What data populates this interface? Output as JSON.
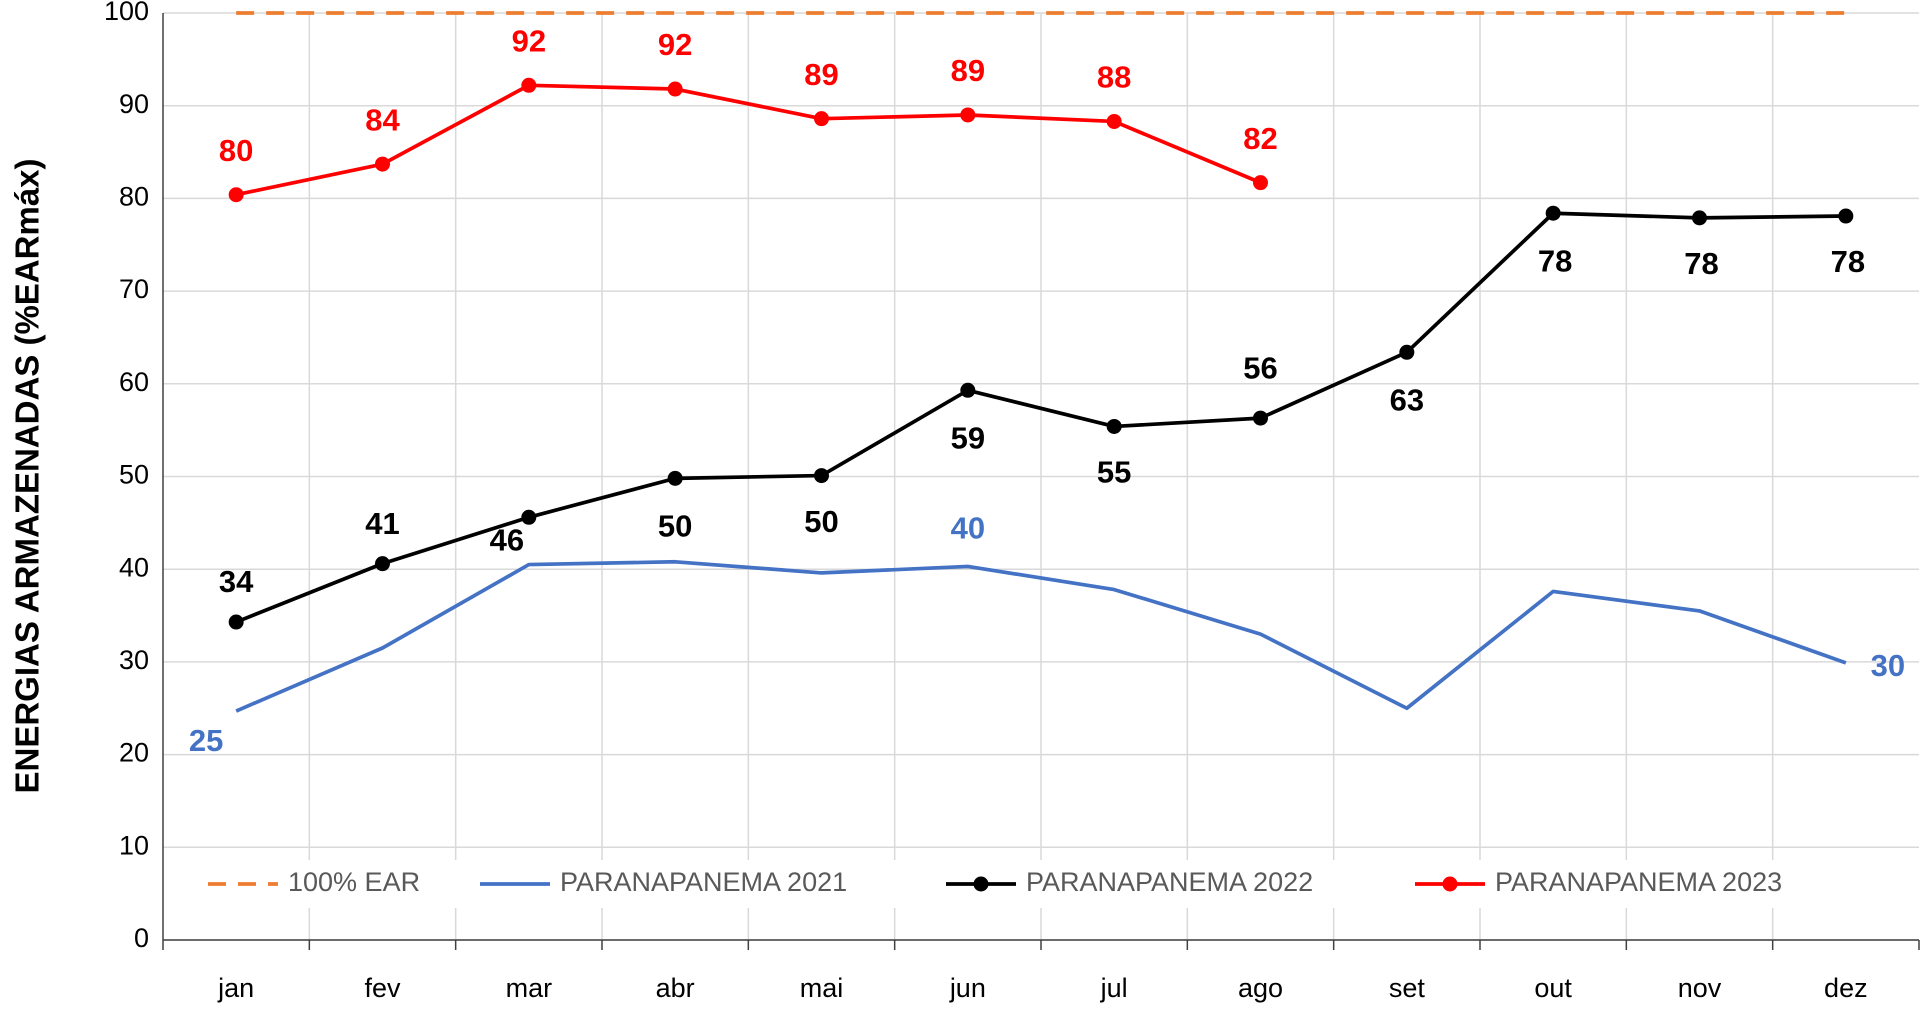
{
  "chart_data": {
    "type": "line",
    "y_label": "ENERGIAS ARMAZENADAS (%EARmáx)",
    "categories": [
      "jan",
      "fev",
      "mar",
      "abr",
      "mai",
      "jun",
      "jul",
      "ago",
      "set",
      "out",
      "nov",
      "dez"
    ],
    "ylim": [
      0,
      100
    ],
    "yticks": [
      0,
      10,
      20,
      30,
      40,
      50,
      60,
      70,
      80,
      90,
      100
    ],
    "grid": true,
    "legend": "bottom",
    "series": [
      {
        "name": "100% EAR",
        "color": "#ed7d31",
        "dashed": true,
        "marker": false,
        "values": [
          100,
          100,
          100,
          100,
          100,
          100,
          100,
          100,
          100,
          100,
          100,
          100
        ]
      },
      {
        "name": "PARANAPANEMA 2021",
        "color": "#4472c4",
        "dashed": false,
        "marker": false,
        "values": [
          24.7,
          31.5,
          40.5,
          40.8,
          39.6,
          40.3,
          37.8,
          33.0,
          25.0,
          37.6,
          35.5,
          29.9
        ],
        "value_labels": [
          25,
          null,
          null,
          null,
          null,
          40,
          null,
          null,
          null,
          null,
          null,
          30
        ]
      },
      {
        "name": "PARANAPANEMA 2022",
        "color": "#000000",
        "dashed": false,
        "marker": true,
        "values": [
          34.3,
          40.6,
          45.6,
          49.8,
          50.1,
          59.3,
          55.4,
          56.3,
          63.4,
          78.4,
          77.9,
          78.1
        ],
        "value_labels": [
          34,
          41,
          46,
          50,
          50,
          59,
          55,
          56,
          63,
          78,
          78,
          78
        ]
      },
      {
        "name": "PARANAPANEMA 2023",
        "color": "#ff0000",
        "dashed": false,
        "marker": true,
        "values": [
          80.4,
          83.7,
          92.2,
          91.8,
          88.6,
          89.0,
          88.3,
          81.7,
          null,
          null,
          null,
          null
        ],
        "value_labels": [
          80,
          84,
          92,
          92,
          89,
          89,
          88,
          82,
          null,
          null,
          null,
          null
        ]
      }
    ]
  }
}
